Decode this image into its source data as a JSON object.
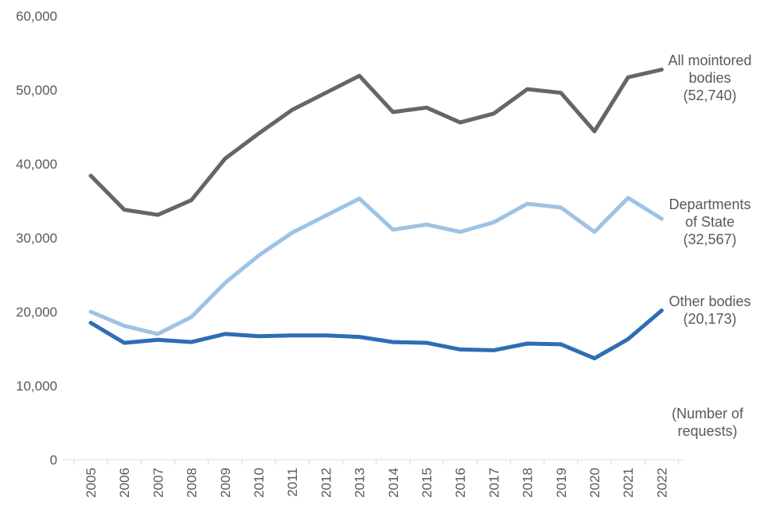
{
  "chart_data": {
    "type": "line",
    "x": [
      "2005",
      "2006",
      "2007",
      "2008",
      "2009",
      "2010",
      "2011",
      "2012",
      "2013",
      "2014",
      "2015",
      "2016",
      "2017",
      "2018",
      "2019",
      "2020",
      "2021",
      "2022"
    ],
    "ylim": [
      0,
      60000
    ],
    "yticks": [
      "0",
      "10,000",
      "20,000",
      "30,000",
      "40,000",
      "50,000",
      "60,000"
    ],
    "grid": false,
    "unit_note": [
      "(Number of",
      "requests)"
    ],
    "series": [
      {
        "name": "All mointored bodies",
        "label_lines": [
          "All mointored",
          "bodies",
          "(52,740)"
        ],
        "color": "#666666",
        "values": [
          38400,
          33800,
          33100,
          35100,
          40700,
          44100,
          47300,
          49600,
          51900,
          47000,
          47600,
          45600,
          46800,
          50100,
          49600,
          44400,
          51700,
          52740
        ]
      },
      {
        "name": "Departments of State",
        "label_lines": [
          "Departments",
          "of State",
          "(32,567)"
        ],
        "color": "#9DC3E6",
        "values": [
          20000,
          18100,
          17000,
          19300,
          23900,
          27600,
          30700,
          33000,
          35300,
          31100,
          31800,
          30800,
          32100,
          34600,
          34100,
          30800,
          35400,
          32567
        ]
      },
      {
        "name": "Other bodies",
        "label_lines": [
          "Other bodies",
          "(20,173)"
        ],
        "color": "#2E6DB4",
        "values": [
          18500,
          15800,
          16200,
          15900,
          17000,
          16700,
          16800,
          16800,
          16600,
          15900,
          15800,
          14900,
          14800,
          15700,
          15600,
          13700,
          16300,
          20173
        ]
      }
    ]
  }
}
